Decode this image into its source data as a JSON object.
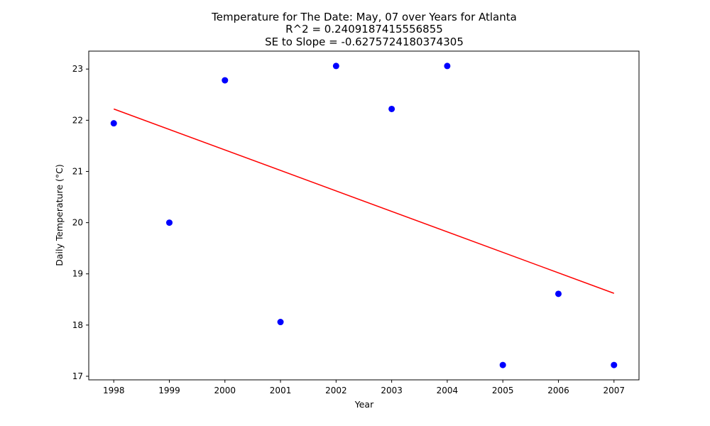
{
  "chart_data": {
    "type": "scatter",
    "title_lines": [
      "Temperature for The Date: May, 07 over Years for Atlanta",
      "R^2 = 0.2409187415556855",
      "SE to Slope = -0.6275724180374305"
    ],
    "xlabel": "Year",
    "ylabel": "Daily Temperature (°C)",
    "x_ticks": [
      1998,
      1999,
      2000,
      2001,
      2002,
      2003,
      2004,
      2005,
      2006,
      2007
    ],
    "y_ticks": [
      17,
      18,
      19,
      20,
      21,
      22,
      23
    ],
    "xlim": [
      1997.55,
      2007.45
    ],
    "ylim": [
      16.93,
      23.35
    ],
    "grid": false,
    "points": {
      "color": "#0000ff",
      "x": [
        1998,
        1999,
        2000,
        2001,
        2002,
        2003,
        2004,
        2005,
        2006,
        2007
      ],
      "y": [
        21.94,
        20.0,
        22.78,
        18.06,
        23.06,
        22.22,
        23.06,
        17.22,
        18.61,
        17.22
      ]
    },
    "trend_line": {
      "color": "#ff0000",
      "x": [
        1998,
        2007
      ],
      "y": [
        22.22,
        18.62
      ]
    }
  }
}
